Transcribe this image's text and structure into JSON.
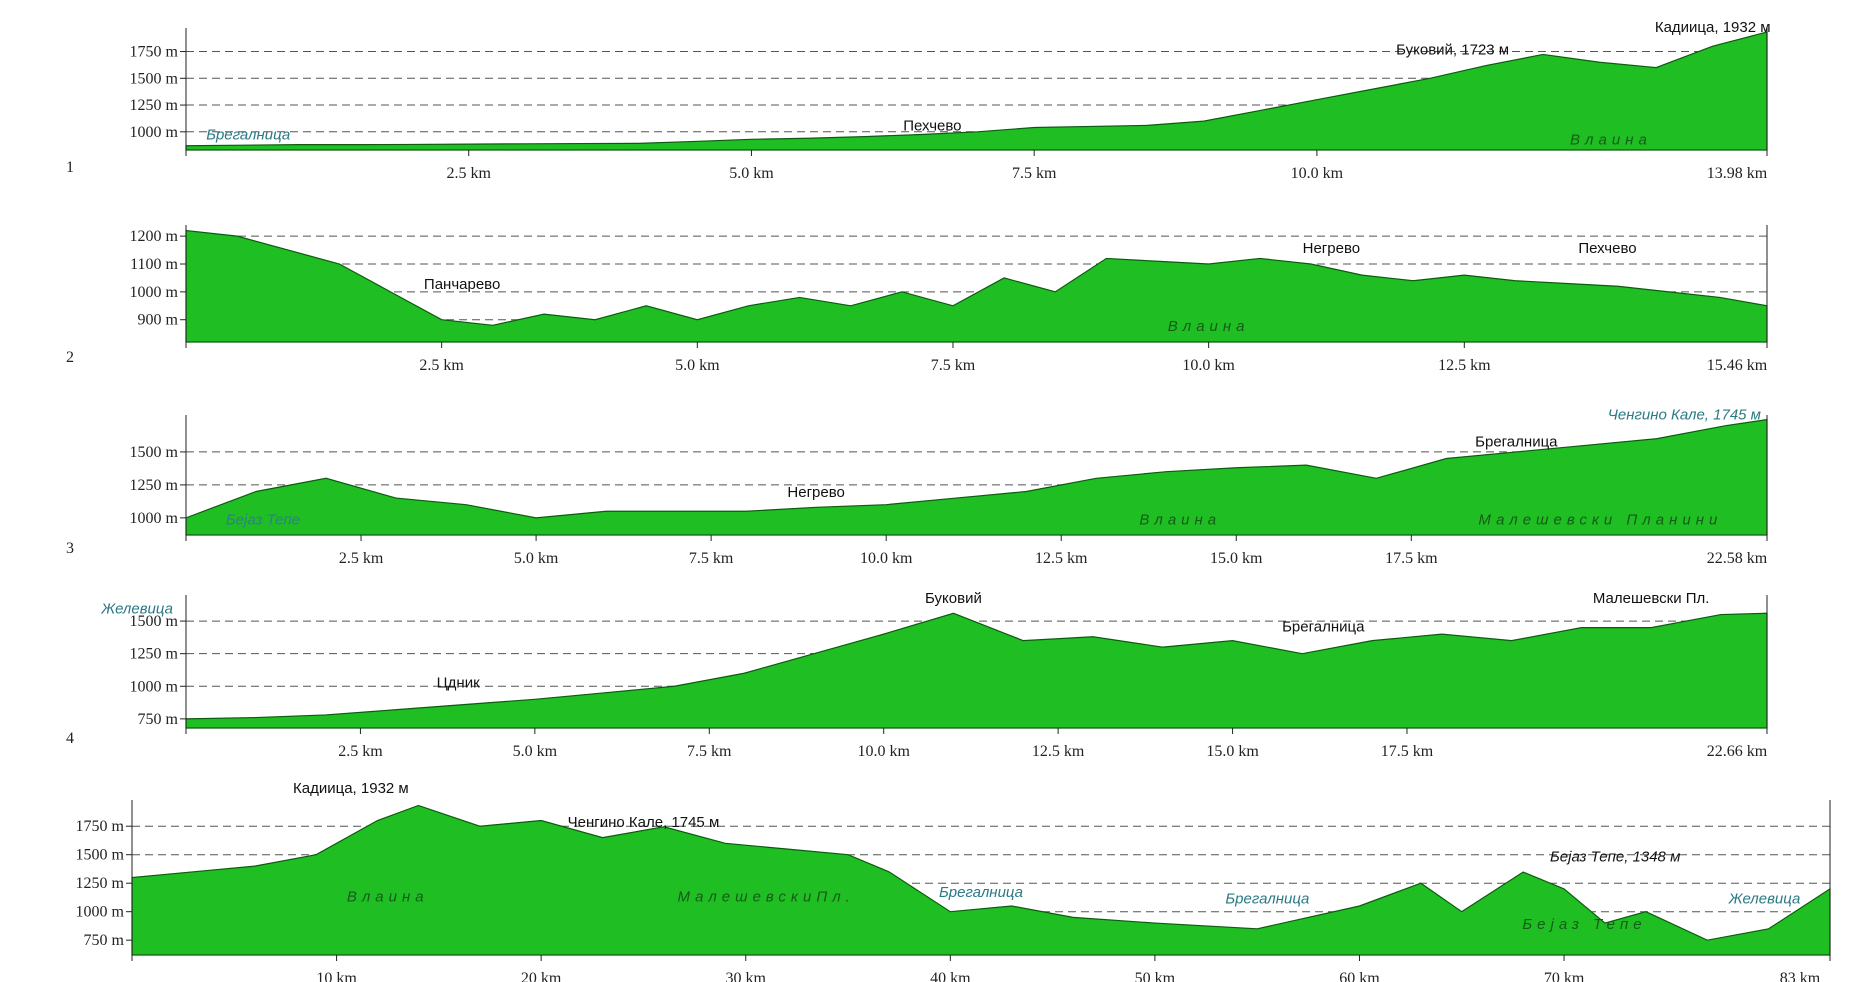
{
  "chart_data": [
    {
      "type": "area",
      "index_label": "1",
      "title": "",
      "xlabel": "",
      "ylabel": "",
      "xlim": [
        0,
        13.98
      ],
      "ylim": [
        830,
        1970
      ],
      "y_ticks": [
        1000,
        1250,
        1500,
        1750
      ],
      "y_tick_labels": [
        "1000 m",
        "1250 m",
        "1500 m",
        "1750 m"
      ],
      "x_tick_values": [
        2.5,
        5.0,
        7.5,
        10.0,
        13.98
      ],
      "x_tick_labels": [
        "2.5 km",
        "5.0 km",
        "7.5 km",
        "10.0 km",
        "13.98 km"
      ],
      "grid": true,
      "profile": {
        "x": [
          0,
          0.5,
          1,
          1.5,
          2,
          2.5,
          3,
          3.5,
          4,
          4.5,
          5,
          5.5,
          6,
          6.5,
          7,
          7.5,
          8,
          8.5,
          9,
          9.5,
          10,
          10.5,
          11,
          11.5,
          12,
          12.5,
          13,
          13.5,
          13.98
        ],
        "y": [
          870,
          875,
          880,
          880,
          882,
          885,
          888,
          890,
          892,
          910,
          930,
          940,
          955,
          975,
          1000,
          1040,
          1050,
          1060,
          1100,
          1200,
          1300,
          1400,
          1500,
          1620,
          1723,
          1650,
          1600,
          1800,
          1932
        ]
      },
      "annotations": [
        {
          "text": "Кадиица, 1932 м",
          "x": 13.5,
          "y": 1932,
          "style": "peak"
        },
        {
          "text": "Буковий, 1723 м",
          "x": 11.2,
          "y": 1723,
          "style": "peak"
        },
        {
          "text": "Пехчево",
          "x": 6.6,
          "y": 1010,
          "style": "place"
        },
        {
          "text": "Брегалница",
          "x": 0.55,
          "y": 930,
          "style": "river"
        },
        {
          "text": "Влаина",
          "x": 12.6,
          "y": 880,
          "style": "area-name"
        }
      ]
    },
    {
      "type": "area",
      "index_label": "2",
      "title": "",
      "xlabel": "",
      "ylabel": "",
      "xlim": [
        0,
        15.46
      ],
      "ylim": [
        820,
        1240
      ],
      "y_ticks": [
        900,
        1000,
        1100,
        1200
      ],
      "y_tick_labels": [
        "900 m",
        "1000 m",
        "1100 m",
        "1200 m"
      ],
      "x_tick_values": [
        2.5,
        5.0,
        7.5,
        10.0,
        12.5,
        15.46
      ],
      "x_tick_labels": [
        "2.5 km",
        "5.0 km",
        "7.5 km",
        "10.0 km",
        "12.5 km",
        "15.46 km"
      ],
      "grid": true,
      "profile": {
        "x": [
          0,
          0.5,
          1,
          1.5,
          2,
          2.5,
          3,
          3.5,
          4,
          4.5,
          5,
          5.5,
          6,
          6.5,
          7,
          7.5,
          8,
          8.5,
          9,
          9.5,
          10,
          10.5,
          11,
          11.5,
          12,
          12.5,
          13,
          13.5,
          14,
          14.5,
          15,
          15.46
        ],
        "y": [
          1220,
          1200,
          1150,
          1100,
          1000,
          900,
          880,
          920,
          900,
          950,
          900,
          950,
          980,
          950,
          1000,
          950,
          1050,
          1000,
          1120,
          1110,
          1100,
          1120,
          1100,
          1060,
          1040,
          1060,
          1040,
          1030,
          1020,
          1000,
          980,
          950
        ]
      },
      "annotations": [
        {
          "text": "Панчарево",
          "x": 2.7,
          "y": 1010,
          "style": "place"
        },
        {
          "text": "Негрево",
          "x": 11.2,
          "y": 1140,
          "style": "place"
        },
        {
          "text": "Пехчево",
          "x": 13.9,
          "y": 1140,
          "style": "place"
        },
        {
          "text": "Влаина",
          "x": 10.0,
          "y": 860,
          "style": "area-name"
        }
      ]
    },
    {
      "type": "area",
      "index_label": "3",
      "title": "",
      "xlabel": "",
      "ylabel": "",
      "xlim": [
        0,
        22.58
      ],
      "ylim": [
        870,
        1780
      ],
      "y_ticks": [
        1000,
        1250,
        1500
      ],
      "y_tick_labels": [
        "1000 m",
        "1250 m",
        "1500 m"
      ],
      "x_tick_values": [
        2.5,
        5.0,
        7.5,
        10.0,
        12.5,
        15.0,
        17.5,
        22.58
      ],
      "x_tick_labels": [
        "2.5 km",
        "5.0 km",
        "7.5 km",
        "10.0 km",
        "12.5 km",
        "15.0 km",
        "17.5 km",
        "22.58 km"
      ],
      "grid": true,
      "profile": {
        "x": [
          0,
          1,
          2,
          3,
          4,
          5,
          6,
          7,
          8,
          9,
          10,
          11,
          12,
          13,
          14,
          15,
          16,
          17,
          18,
          19,
          20,
          21,
          22,
          22.58
        ],
        "y": [
          1000,
          1200,
          1300,
          1150,
          1100,
          1000,
          1050,
          1050,
          1050,
          1080,
          1100,
          1150,
          1200,
          1300,
          1350,
          1380,
          1400,
          1300,
          1450,
          1500,
          1550,
          1600,
          1700,
          1745
        ]
      },
      "annotations": [
        {
          "text": "Ченгино Кале, 1745 м",
          "x": 21.4,
          "y": 1745,
          "style": "peak-teal"
        },
        {
          "text": "Брегалница",
          "x": 19.0,
          "y": 1540,
          "style": "place"
        },
        {
          "text": "Негрево",
          "x": 9.0,
          "y": 1160,
          "style": "place"
        },
        {
          "text": "Бејаз Тепе",
          "x": 1.1,
          "y": 950,
          "style": "area-name-teal"
        },
        {
          "text": "Влаина",
          "x": 14.2,
          "y": 950,
          "style": "area-name"
        },
        {
          "text": "Малешевски Планини",
          "x": 20.2,
          "y": 950,
          "style": "area-name"
        }
      ]
    },
    {
      "type": "area",
      "index_label": "4",
      "title": "",
      "xlabel": "",
      "ylabel": "",
      "xlim": [
        0,
        22.66
      ],
      "ylim": [
        680,
        1700
      ],
      "y_ticks": [
        750,
        1000,
        1250,
        1500
      ],
      "y_tick_labels": [
        "750 m",
        "1000 m",
        "1250 m",
        "1500 m"
      ],
      "x_tick_values": [
        2.5,
        5.0,
        7.5,
        10.0,
        12.5,
        15.0,
        17.5,
        22.66
      ],
      "x_tick_labels": [
        "2.5 km",
        "5.0 km",
        "7.5 km",
        "10.0 km",
        "12.5 km",
        "15.0 km",
        "17.5 km",
        "22.66 km"
      ],
      "grid": true,
      "profile": {
        "x": [
          0,
          1,
          2,
          3,
          4,
          5,
          6,
          7,
          8,
          9,
          10,
          11,
          12,
          13,
          14,
          15,
          16,
          17,
          18,
          19,
          20,
          21,
          22,
          22.66
        ],
        "y": [
          750,
          760,
          780,
          820,
          860,
          900,
          950,
          1000,
          1100,
          1250,
          1400,
          1560,
          1350,
          1380,
          1300,
          1350,
          1250,
          1350,
          1400,
          1350,
          1450,
          1450,
          1550,
          1560
        ]
      },
      "annotations": [
        {
          "text": "Желевица",
          "x": -0.7,
          "y": 1560,
          "style": "river"
        },
        {
          "text": "Буковий",
          "x": 11.0,
          "y": 1640,
          "style": "place"
        },
        {
          "text": "Малешевски Пл.",
          "x": 21.0,
          "y": 1640,
          "style": "place"
        },
        {
          "text": "Брегалница",
          "x": 16.3,
          "y": 1420,
          "style": "place"
        },
        {
          "text": "Цдник",
          "x": 3.9,
          "y": 990,
          "style": "place"
        }
      ]
    },
    {
      "type": "area",
      "index_label": "",
      "title": "",
      "xlabel": "",
      "ylabel": "",
      "xlim": [
        0,
        83
      ],
      "ylim": [
        620,
        1980
      ],
      "y_ticks": [
        750,
        1000,
        1250,
        1500,
        1750
      ],
      "y_tick_labels": [
        "750 m",
        "1000 m",
        "1250 m",
        "1500 m",
        "1750 m"
      ],
      "x_tick_values": [
        10,
        20,
        30,
        40,
        50,
        60,
        70,
        83
      ],
      "x_tick_labels": [
        "10 km",
        "20 km",
        "30 km",
        "40 km",
        "50 km",
        "60 km",
        "70 km",
        "83 km"
      ],
      "grid": true,
      "profile": {
        "x": [
          0,
          3,
          6,
          9,
          12,
          14,
          17,
          20,
          23,
          26,
          29,
          32,
          35,
          37,
          40,
          43,
          46,
          50,
          55,
          60,
          63,
          65,
          68,
          70,
          72,
          74,
          77,
          80,
          83
        ],
        "y": [
          1300,
          1350,
          1400,
          1500,
          1800,
          1932,
          1750,
          1800,
          1650,
          1745,
          1600,
          1550,
          1500,
          1350,
          1000,
          1050,
          950,
          900,
          850,
          1050,
          1250,
          1000,
          1348,
          1200,
          900,
          1000,
          750,
          850,
          1200
        ]
      },
      "annotations": [
        {
          "text": "Кадиица, 1932 м",
          "x": 10.7,
          "y": 2040,
          "style": "peak"
        },
        {
          "text": "Ченгино Кале, 1745 м",
          "x": 25.0,
          "y": 1745,
          "style": "peak"
        },
        {
          "text": "Бејаз Тепе, 1348 м",
          "x": 72.5,
          "y": 1440,
          "style": "peak-italic"
        },
        {
          "text": "Влаина",
          "x": 12.5,
          "y": 1090,
          "style": "area-name"
        },
        {
          "text": "МалешевскиПл.",
          "x": 31.0,
          "y": 1090,
          "style": "area-name"
        },
        {
          "text": "Брегалница",
          "x": 41.5,
          "y": 1130,
          "style": "river"
        },
        {
          "text": "Брегалница",
          "x": 55.5,
          "y": 1070,
          "style": "river"
        },
        {
          "text": "Бејаз Тепе",
          "x": 71.0,
          "y": 850,
          "style": "area-name"
        },
        {
          "text": "Желевица",
          "x": 79.8,
          "y": 1070,
          "style": "river"
        }
      ]
    }
  ],
  "colors": {
    "fill": "#1fbe23",
    "outline": "#0d5b10",
    "grid": "#555555",
    "text": "#111111",
    "teal_text": "#2a7a85"
  }
}
